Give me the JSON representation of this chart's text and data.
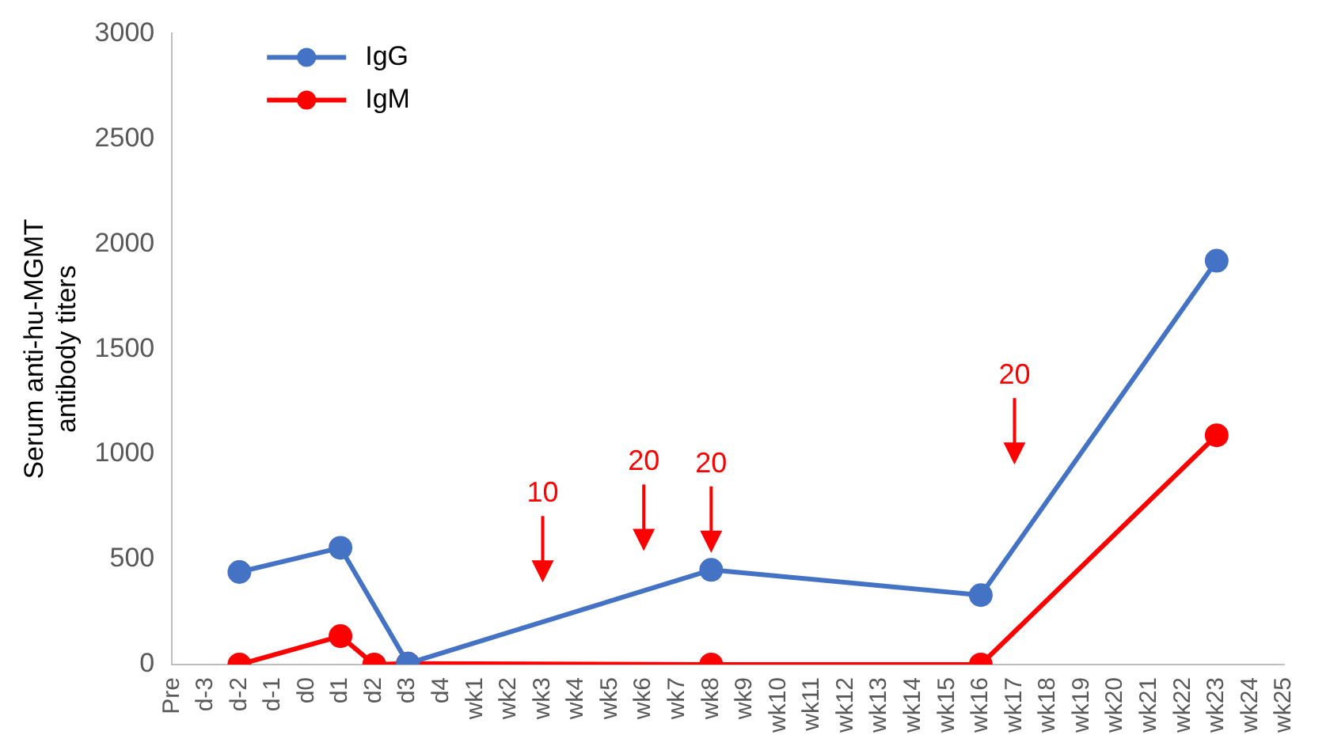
{
  "chart_data": {
    "type": "line",
    "ylabel": "Serum anti-hu-MGMT antibody titers",
    "categories": [
      "Pre",
      "d-3",
      "d-2",
      "d-1",
      "d0",
      "d1",
      "d2",
      "d3",
      "d4",
      "wk1",
      "wk2",
      "wk3",
      "wk4",
      "wk5",
      "wk6",
      "wk7",
      "wk8",
      "wk9",
      "wk10",
      "wk11",
      "wk12",
      "wk13",
      "wk14",
      "wk15",
      "wk16",
      "wk17",
      "wk18",
      "wk19",
      "wk20",
      "wk21",
      "wk22",
      "wk23",
      "wk24",
      "wk25"
    ],
    "series": [
      {
        "name": "IgG",
        "color": "#4472c4",
        "values": [
          null,
          null,
          440,
          null,
          null,
          555,
          null,
          5,
          null,
          null,
          null,
          null,
          null,
          null,
          null,
          null,
          450,
          null,
          null,
          null,
          null,
          null,
          null,
          null,
          330,
          null,
          null,
          null,
          null,
          null,
          null,
          1920,
          null,
          null
        ]
      },
      {
        "name": "IgM",
        "color": "#ff0000",
        "values": [
          null,
          null,
          0,
          null,
          null,
          135,
          0,
          5,
          null,
          null,
          null,
          null,
          null,
          null,
          null,
          null,
          0,
          null,
          null,
          null,
          null,
          null,
          null,
          null,
          0,
          null,
          null,
          null,
          null,
          null,
          null,
          1090,
          null,
          null
        ]
      }
    ],
    "ylim": [
      0,
      3000
    ],
    "yticks": [
      0,
      500,
      1000,
      1500,
      2000,
      2500,
      3000
    ],
    "grid": false,
    "legend": "top left",
    "marker": "circle",
    "line_style": "solid",
    "annotations": [
      "10",
      "20",
      "20",
      "20"
    ]
  }
}
